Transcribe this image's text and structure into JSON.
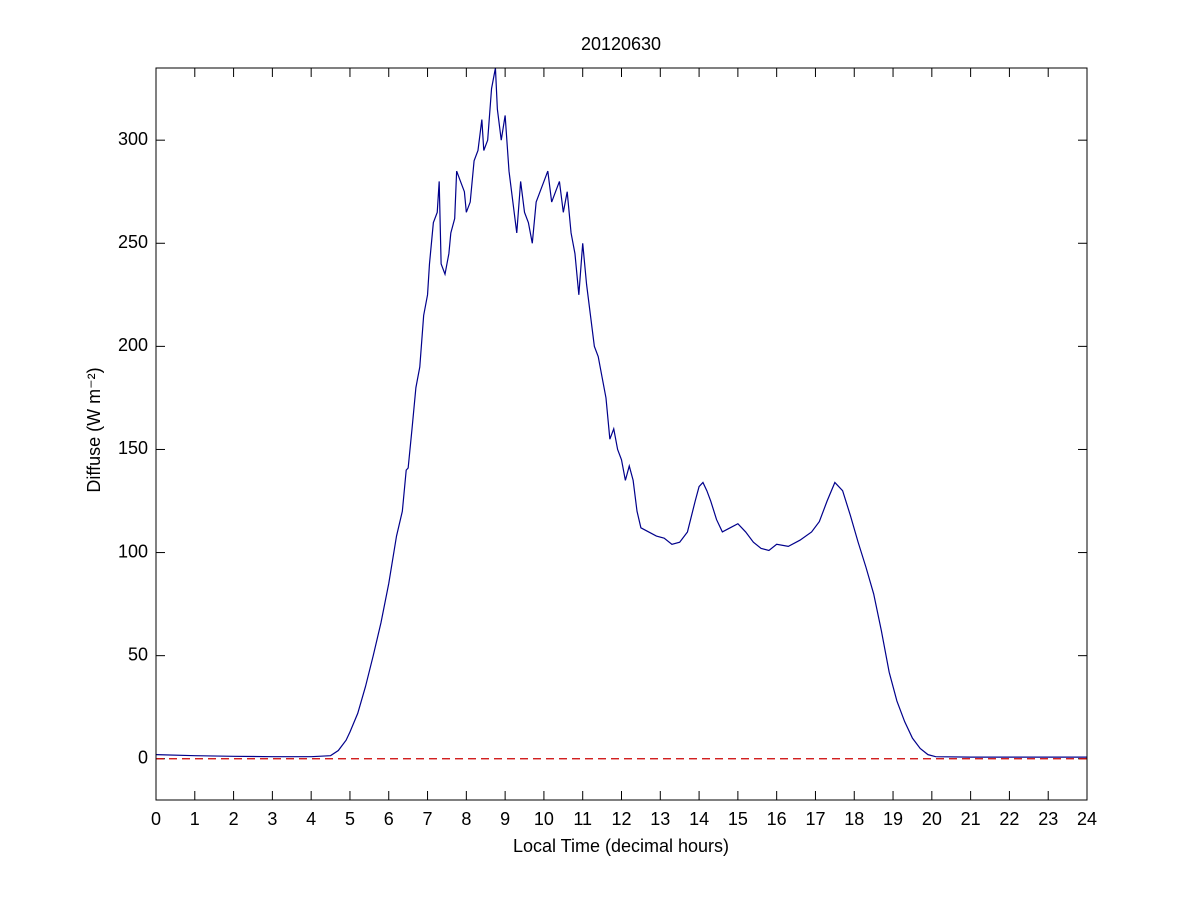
{
  "chart_data": {
    "type": "line",
    "title": "20120630",
    "xlabel": "Local Time (decimal hours)",
    "ylabel": "Diffuse (W m⁻²)",
    "x": [
      0,
      1,
      2,
      3,
      4,
      4.5,
      4.7,
      4.9,
      5.0,
      5.2,
      5.4,
      5.6,
      5.8,
      6.0,
      6.2,
      6.35,
      6.45,
      6.5,
      6.6,
      6.7,
      6.8,
      6.9,
      7.0,
      7.05,
      7.15,
      7.25,
      7.3,
      7.35,
      7.45,
      7.55,
      7.6,
      7.7,
      7.75,
      7.85,
      7.95,
      8.0,
      8.1,
      8.2,
      8.3,
      8.4,
      8.45,
      8.55,
      8.65,
      8.75,
      8.8,
      8.9,
      9.0,
      9.1,
      9.2,
      9.3,
      9.4,
      9.5,
      9.6,
      9.7,
      9.8,
      9.9,
      10.0,
      10.1,
      10.2,
      10.3,
      10.4,
      10.5,
      10.6,
      10.7,
      10.8,
      10.9,
      11.0,
      11.1,
      11.2,
      11.3,
      11.4,
      11.5,
      11.6,
      11.7,
      11.8,
      11.9,
      12.0,
      12.1,
      12.2,
      12.3,
      12.4,
      12.5,
      12.7,
      12.9,
      13.1,
      13.3,
      13.5,
      13.7,
      13.9,
      14.0,
      14.1,
      14.2,
      14.3,
      14.45,
      14.6,
      14.8,
      15.0,
      15.2,
      15.4,
      15.6,
      15.8,
      16.0,
      16.3,
      16.6,
      16.9,
      17.1,
      17.3,
      17.5,
      17.7,
      17.9,
      18.1,
      18.3,
      18.5,
      18.7,
      18.9,
      19.1,
      19.3,
      19.5,
      19.7,
      19.9,
      20.1,
      21,
      22,
      23,
      24
    ],
    "series": [
      {
        "color": "#00008b",
        "values": [
          2,
          1.5,
          1.2,
          1,
          1,
          1.5,
          4,
          9,
          13,
          22,
          35,
          50,
          66,
          85,
          108,
          120,
          140,
          141,
          160,
          180,
          190,
          215,
          225,
          240,
          260,
          265,
          280,
          240,
          235,
          245,
          255,
          262,
          285,
          280,
          275,
          265,
          270,
          290,
          295,
          310,
          295,
          300,
          325,
          335,
          315,
          300,
          312,
          285,
          270,
          255,
          280,
          265,
          260,
          250,
          270,
          275,
          280,
          285,
          270,
          275,
          280,
          265,
          275,
          255,
          245,
          225,
          250,
          230,
          215,
          200,
          195,
          185,
          175,
          155,
          160,
          150,
          145,
          135,
          142,
          135,
          120,
          112,
          110,
          108,
          107,
          104,
          105,
          110,
          125,
          132,
          134,
          130,
          125,
          116,
          110,
          112,
          114,
          110,
          105,
          102,
          101,
          104,
          103,
          106,
          110,
          115,
          125,
          134,
          130,
          118,
          105,
          93,
          80,
          62,
          42,
          28,
          18,
          10,
          5,
          2,
          1,
          0.8,
          0.8,
          0.8,
          0.8
        ]
      }
    ],
    "hline": {
      "y": 0,
      "color": "#cc0000",
      "dashed": true
    },
    "xlim": [
      0,
      24
    ],
    "ylim": [
      -20,
      335
    ],
    "xticks": [
      0,
      1,
      2,
      3,
      4,
      5,
      6,
      7,
      8,
      9,
      10,
      11,
      12,
      13,
      14,
      15,
      16,
      17,
      18,
      19,
      20,
      21,
      22,
      23,
      24
    ],
    "yticks": [
      0,
      50,
      100,
      150,
      200,
      250,
      300
    ],
    "grid": false
  }
}
